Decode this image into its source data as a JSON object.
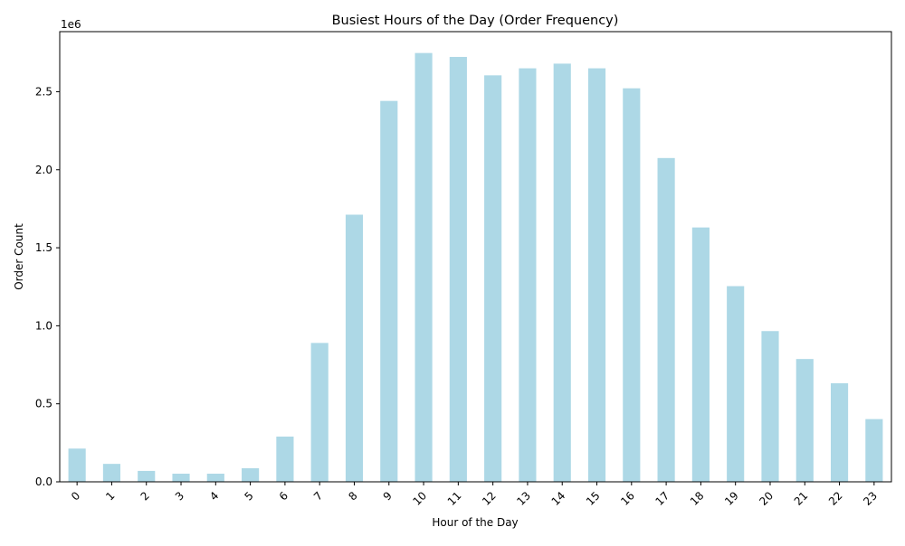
{
  "chart_data": {
    "type": "bar",
    "title": "Busiest Hours of the Day (Order Frequency)",
    "xlabel": "Hour of the Day",
    "ylabel": "Order Count",
    "y_multiplier_label": "1e6",
    "categories": [
      "0",
      "1",
      "2",
      "3",
      "4",
      "5",
      "6",
      "7",
      "8",
      "9",
      "10",
      "11",
      "12",
      "13",
      "14",
      "15",
      "16",
      "17",
      "18",
      "19",
      "20",
      "21",
      "22",
      "23"
    ],
    "values": [
      213000,
      115000,
      70000,
      52000,
      52000,
      87000,
      290000,
      890000,
      1712000,
      2441000,
      2748000,
      2723000,
      2605000,
      2650000,
      2680000,
      2650000,
      2522000,
      2075000,
      1630000,
      1254000,
      966000,
      787000,
      632000,
      402000
    ],
    "y_ticks": [
      0,
      500000,
      1000000,
      1500000,
      2000000,
      2500000
    ],
    "y_tick_labels": [
      "0.0",
      "0.5",
      "1.0",
      "1.5",
      "2.0",
      "2.5"
    ],
    "ylim": [
      0,
      2885000
    ],
    "bar_color": "#add8e6",
    "grid": false,
    "legend": "none",
    "x_tick_rotation_deg": 45
  }
}
